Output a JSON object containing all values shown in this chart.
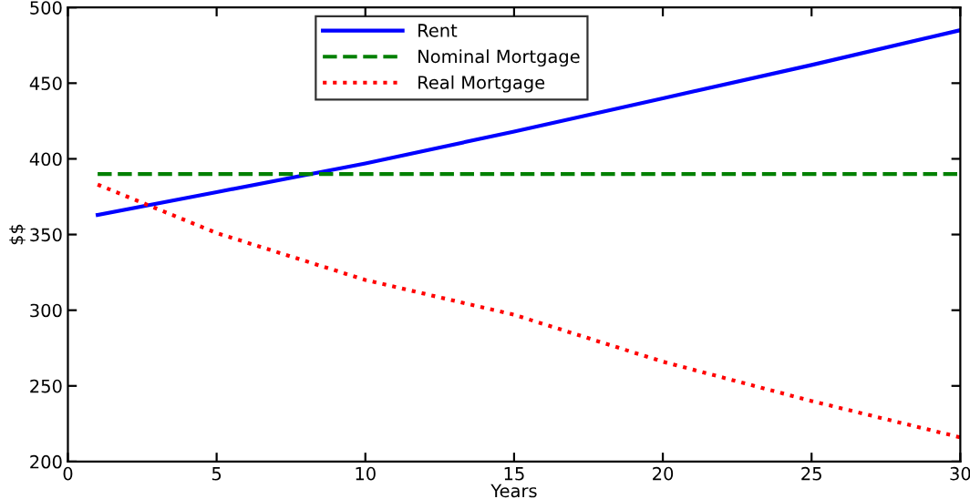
{
  "chart_data": {
    "type": "line",
    "xlabel": "Years",
    "ylabel": "$$",
    "xlim": [
      0,
      30
    ],
    "ylim": [
      200,
      500
    ],
    "xticks": [
      0,
      5,
      10,
      15,
      20,
      25,
      30
    ],
    "yticks": [
      200,
      250,
      300,
      350,
      400,
      450,
      500
    ],
    "grid": false,
    "legend": "top",
    "marker": "none",
    "series": [
      {
        "name": "Rent",
        "color": "#0000ff",
        "line_style": "solid",
        "x": [
          1,
          5,
          10,
          15,
          20,
          25,
          30
        ],
        "values": [
          363,
          378,
          397,
          418,
          440,
          462,
          485
        ]
      },
      {
        "name": "Nominal Mortgage",
        "color": "#008000",
        "line_style": "dashed",
        "x": [
          1,
          30
        ],
        "values": [
          390,
          390
        ]
      },
      {
        "name": "Real Mortgage",
        "color": "#ff0000",
        "line_style": "dotted",
        "x": [
          1,
          5,
          10,
          15,
          20,
          25,
          30
        ],
        "values": [
          383,
          351,
          320,
          297,
          266,
          240,
          216
        ]
      }
    ]
  }
}
